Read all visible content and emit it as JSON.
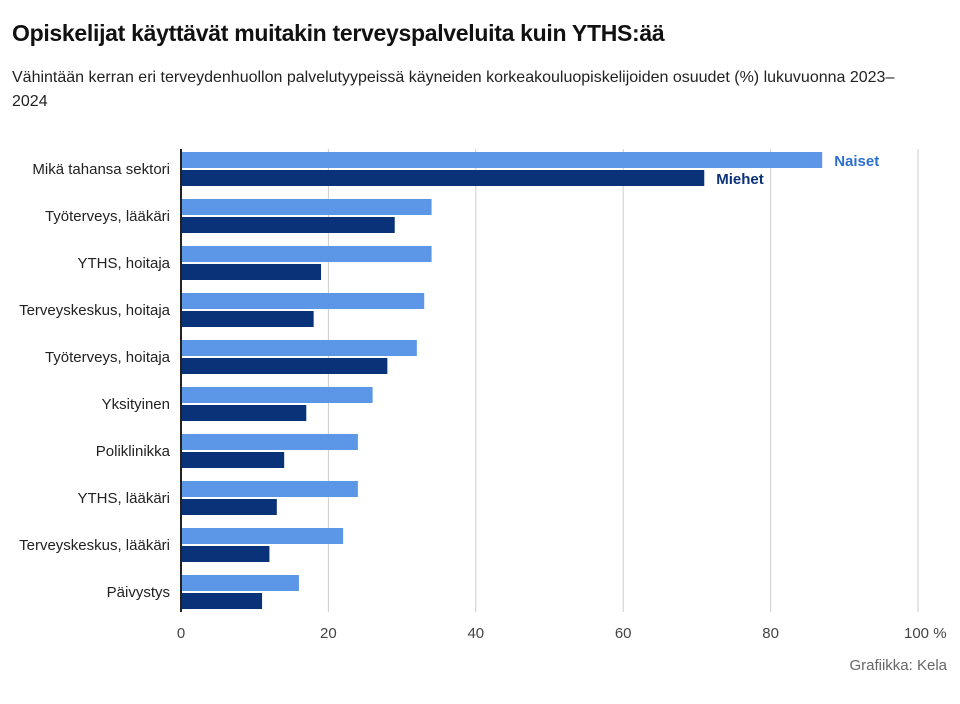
{
  "header": {
    "title": "Opiskelijat käyttävät muitakin terveyspalveluita kuin YTHS:ää",
    "subtitle": "Vähintään kerran eri terveydenhuollon palvelutyypeissä käyneiden korkeakouluopiskelijoiden osuudet (%) lukuvuonna 2023–2024"
  },
  "footer": {
    "source": "Grafiikka: Kela"
  },
  "colors": {
    "naiset": "#5b97e6",
    "miehet": "#0a3278",
    "grid": "#cccccc",
    "axis": "#222222"
  },
  "chart_data": {
    "type": "bar",
    "orientation": "horizontal",
    "categories": [
      "Mikä tahansa sektori",
      "Työterveys, lääkäri",
      "YTHS, hoitaja",
      "Terveyskeskus, hoitaja",
      "Työterveys, hoitaja",
      "Yksityinen",
      "Poliklinikka",
      "YTHS, lääkäri",
      "Terveyskeskus, lääkäri",
      "Päivystys"
    ],
    "series": [
      {
        "name": "Naiset",
        "values": [
          87,
          34,
          34,
          33,
          32,
          26,
          24,
          24,
          22,
          16
        ]
      },
      {
        "name": "Miehet",
        "values": [
          71,
          29,
          19,
          18,
          28,
          17,
          14,
          13,
          12,
          11
        ]
      }
    ],
    "xlim": [
      0,
      100
    ],
    "xticks": [
      0,
      20,
      40,
      60,
      80,
      100
    ],
    "xtick_labels": [
      "0",
      "20",
      "40",
      "60",
      "80",
      "100 %"
    ],
    "grid": true,
    "legend": "direct labels at end of first category bars"
  }
}
